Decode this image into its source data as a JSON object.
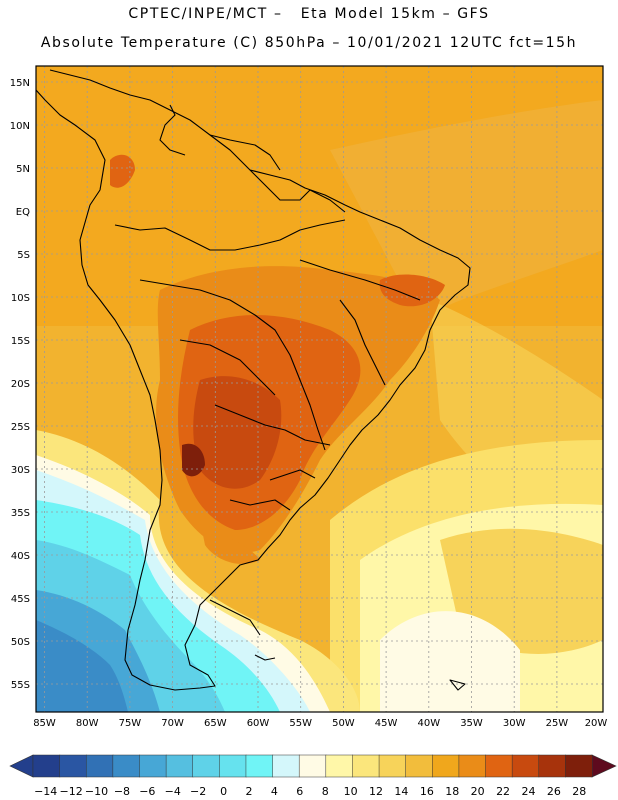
{
  "header": {
    "line1": "CPTEC/INPE/MCT –   Eta Model 15km – GFS",
    "line2": "Absolute Temperature (C) 850hPa – 10/01/2021 12UTC fct=15h"
  },
  "map": {
    "lat_labels": [
      "15N",
      "10N",
      "5N",
      "EQ",
      "5S",
      "10S",
      "15S",
      "20S",
      "25S",
      "30S",
      "35S",
      "40S",
      "45S",
      "50S",
      "55S"
    ],
    "lon_labels": [
      "85W",
      "80W",
      "75W",
      "70W",
      "65W",
      "60W",
      "55W",
      "50W",
      "45W",
      "40W",
      "35W",
      "30W",
      "25W",
      "20W"
    ]
  },
  "colorbar": {
    "labels": [
      "-14",
      "-12",
      "-10",
      "-8",
      "-6",
      "-4",
      "-2",
      "0",
      "2",
      "4",
      "6",
      "8",
      "10",
      "12",
      "14",
      "16",
      "18",
      "20",
      "22",
      "24",
      "26",
      "28"
    ],
    "colors": [
      "#233f8c",
      "#2a56a3",
      "#3171b5",
      "#3a8cc7",
      "#47a7d6",
      "#55bfe0",
      "#5fd2e8",
      "#66e2ee",
      "#70f4f6",
      "#d4f7fb",
      "#fffbe5",
      "#fff7a8",
      "#fbe67c",
      "#f7d35a",
      "#f2bd3c",
      "#f0a71c",
      "#ea8c18",
      "#e06412",
      "#c84a0f",
      "#a7330c",
      "#7e1f0b",
      "#5e0a1e"
    ]
  }
}
